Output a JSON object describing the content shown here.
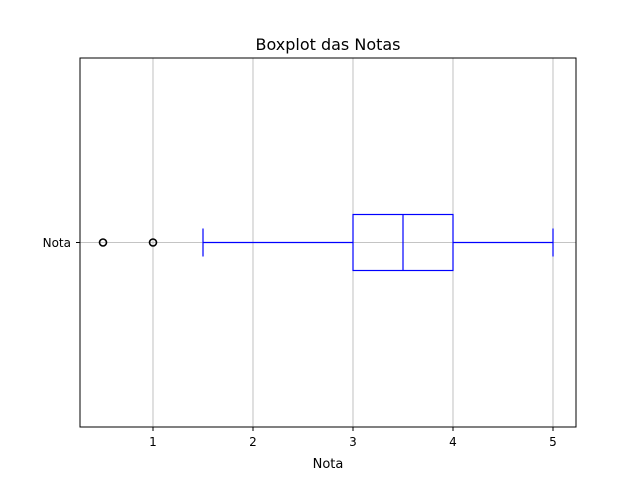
{
  "chart_data": {
    "type": "boxplot",
    "orientation": "horizontal",
    "title": "Boxplot das Notas",
    "xlabel": "Nota",
    "ylabel": "",
    "xlim": [
      0.27,
      5.23
    ],
    "x_ticks": [
      1,
      2,
      3,
      4,
      5
    ],
    "x_tick_labels": [
      "1",
      "2",
      "3",
      "4",
      "5"
    ],
    "categories": [
      "Nota"
    ],
    "grid": true,
    "box_color": "#0000ff",
    "outlier_color": "#000000",
    "grid_color": "#b0b0b0",
    "series": [
      {
        "category": "Nota",
        "whisker_low": 1.5,
        "q1": 3.0,
        "median": 3.5,
        "q3": 4.0,
        "whisker_high": 5.0,
        "outliers": [
          0.5,
          1.0
        ]
      }
    ]
  }
}
